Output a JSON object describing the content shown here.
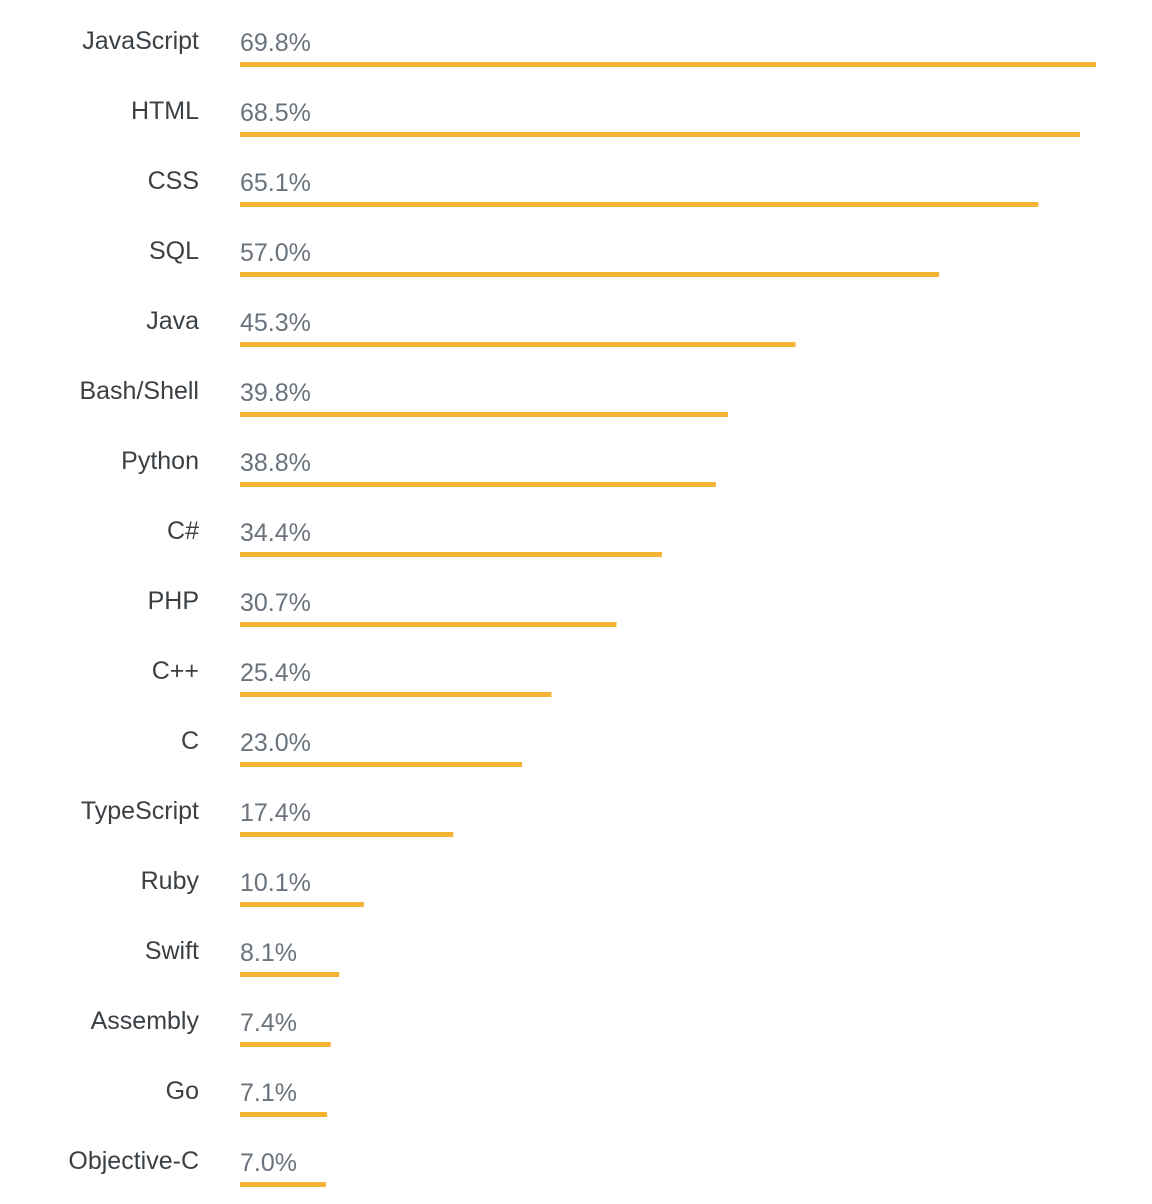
{
  "chart_data": {
    "type": "bar",
    "orientation": "horizontal",
    "categories": [
      "JavaScript",
      "HTML",
      "CSS",
      "SQL",
      "Java",
      "Bash/Shell",
      "Python",
      "C#",
      "PHP",
      "C++",
      "C",
      "TypeScript",
      "Ruby",
      "Swift",
      "Assembly",
      "Go",
      "Objective-C"
    ],
    "values": [
      69.8,
      68.5,
      65.1,
      57.0,
      45.3,
      39.8,
      38.8,
      34.4,
      30.7,
      25.4,
      23.0,
      17.4,
      10.1,
      8.1,
      7.4,
      7.1,
      7.0
    ],
    "value_labels": [
      "69.8%",
      "68.5%",
      "65.1%",
      "57.0%",
      "45.3%",
      "39.8%",
      "38.8%",
      "34.4%",
      "30.7%",
      "25.4%",
      "23.0%",
      "17.4%",
      "10.1%",
      "8.1%",
      "7.4%",
      "7.1%",
      "7.0%"
    ],
    "unit": "%",
    "title": "",
    "xlabel": "",
    "ylabel": "",
    "grid": false,
    "legend": "none",
    "bar_color": "#f5b335",
    "category_label_color": "#3b4045",
    "value_label_color": "#6a737c"
  }
}
